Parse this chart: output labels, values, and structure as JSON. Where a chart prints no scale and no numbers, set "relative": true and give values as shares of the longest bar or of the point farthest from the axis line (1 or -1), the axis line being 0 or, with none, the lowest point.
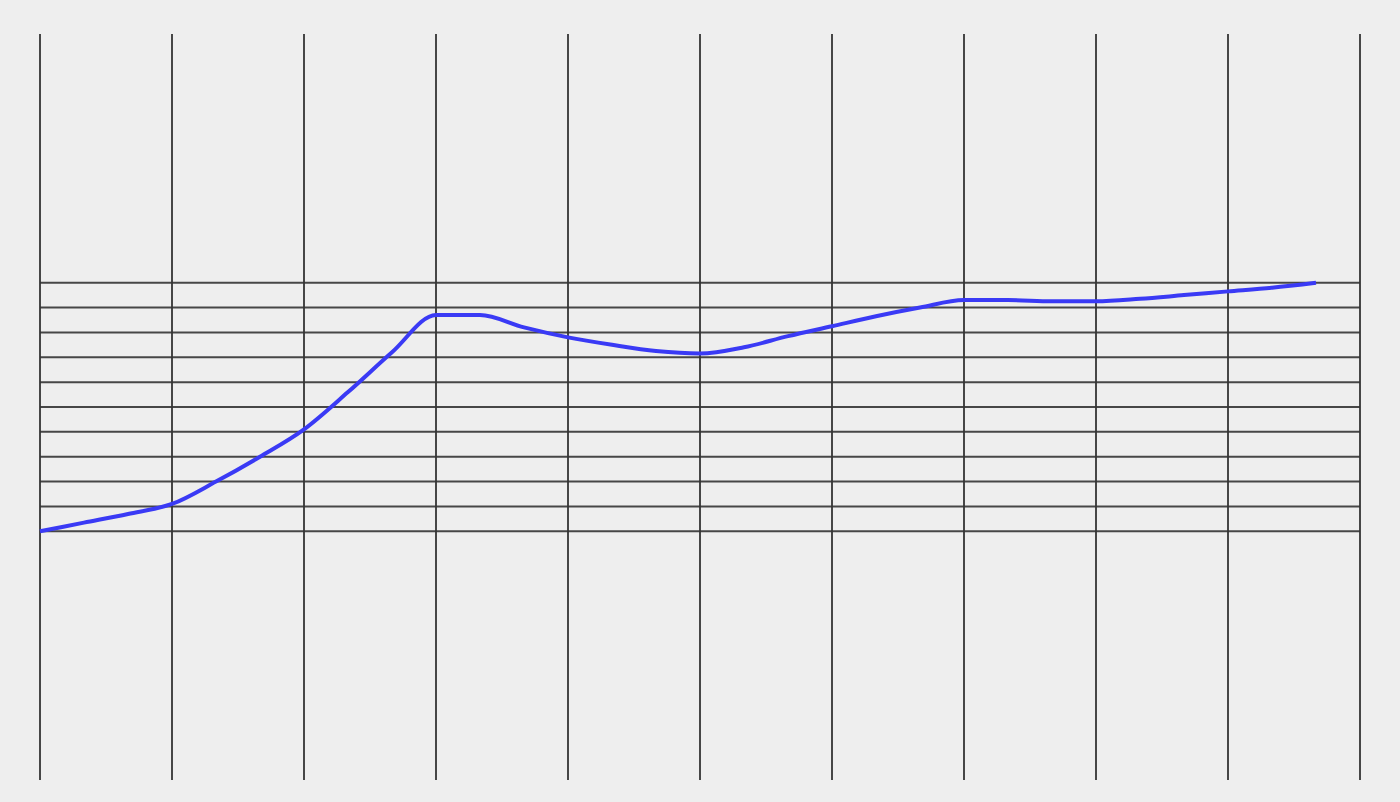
{
  "chart_data": {
    "type": "line",
    "relative": true,
    "grid": true,
    "categories": [
      null,
      null,
      null,
      null,
      null,
      null,
      null,
      null,
      null,
      null,
      null,
      null,
      null,
      null,
      null,
      null,
      null,
      null,
      null,
      null,
      null,
      null,
      null,
      null,
      null,
      null,
      null,
      null,
      null,
      null,
      null
    ],
    "series": [
      {
        "color": "#3a3af5",
        "values": [
          0,
          0.035,
          0.07,
          0.11,
          0.2,
          0.3,
          0.41,
          0.56,
          0.72,
          0.87,
          0.87,
          0.82,
          0.78,
          0.75,
          0.725,
          0.715,
          0.74,
          0.785,
          0.825,
          0.865,
          0.9,
          0.93,
          0.93,
          0.925,
          0.925,
          0.935,
          0.95,
          0.965,
          0.98,
          1,
          null
        ]
      }
    ]
  }
}
